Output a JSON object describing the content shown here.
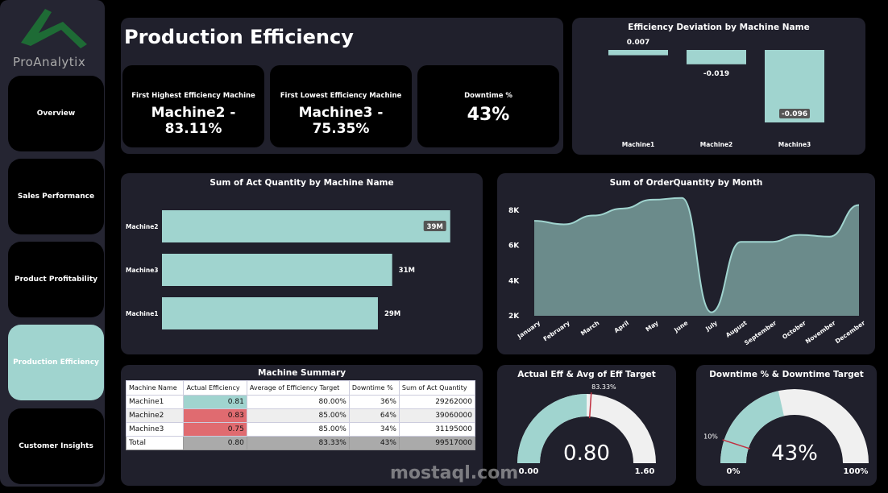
{
  "brand": {
    "name": "ProAnalytix",
    "logo_color": "#1e6b35"
  },
  "nav": [
    {
      "label": "Overview"
    },
    {
      "label": "Sales Performance"
    },
    {
      "label": "Product Profitability"
    },
    {
      "label": "Production Efficiency",
      "active": true
    },
    {
      "label": "Customer Insights"
    }
  ],
  "header": {
    "title": "Production Efficiency"
  },
  "kpis": [
    {
      "label": "First Highest Efficiency Machine",
      "value": "Machine2 - 83.11%"
    },
    {
      "label": "First Lowest Efficiency Machine",
      "value": "Machine3 - 75.35%"
    },
    {
      "label": "Downtime %",
      "value": "43%"
    }
  ],
  "colors": {
    "accent": "#a0d4cf",
    "area": "#6b8b8b",
    "red": "#e06b70",
    "panel": "#20202c"
  },
  "chart_data": [
    {
      "type": "bar",
      "title": "Efficiency Deviation by Machine Name",
      "categories": [
        "Machine1",
        "Machine2",
        "Machine3"
      ],
      "values": [
        0.007,
        -0.019,
        -0.096
      ],
      "labels": [
        "0.007",
        "-0.019",
        "-0.096"
      ]
    },
    {
      "type": "bar",
      "orientation": "horizontal",
      "title": "Sum of Act Quantity by Machine Name",
      "categories": [
        "Machine2",
        "Machine3",
        "Machine1"
      ],
      "values": [
        39060000,
        31195000,
        29262000
      ],
      "labels": [
        "39M",
        "31M",
        "29M"
      ],
      "xlim": [
        0,
        40000000
      ]
    },
    {
      "type": "area",
      "title": "Sum of OrderQuantity by Month",
      "categories": [
        "January",
        "February",
        "March",
        "April",
        "May",
        "June",
        "July",
        "August",
        "September",
        "October",
        "November",
        "December"
      ],
      "values": [
        7400,
        7200,
        7700,
        8100,
        8600,
        8700,
        2200,
        6200,
        6200,
        6600,
        6500,
        8300
      ],
      "yticks": [
        "2K",
        "4K",
        "6K",
        "8K"
      ],
      "ylim": [
        2000,
        9000
      ]
    },
    {
      "type": "gauge",
      "title": "Actual Eff & Avg of Eff Target",
      "value": 0.8,
      "value_label": "0.80",
      "min": 0,
      "max": 1.6,
      "min_label": "0.00",
      "max_label": "1.60",
      "target": 0.8333,
      "target_label": "83.33%"
    },
    {
      "type": "gauge",
      "title": "Downtime % & Downtime Target",
      "value": 43,
      "value_label": "43%",
      "min": 0,
      "max": 100,
      "min_label": "0%",
      "max_label": "100%",
      "target": 10,
      "target_label": "10%"
    }
  ],
  "table": {
    "title": "Machine Summary",
    "headers": [
      "Machine Name",
      "Actual Efficiency",
      "Average of Efficiency Target",
      "Downtime %",
      "Sum of Act Quantity"
    ],
    "rows": [
      [
        "Machine1",
        "0.81",
        "80.00%",
        "36%",
        "29262000"
      ],
      [
        "Machine2",
        "0.83",
        "85.00%",
        "64%",
        "39060000"
      ],
      [
        "Machine3",
        "0.75",
        "85.00%",
        "34%",
        "31195000"
      ]
    ],
    "total": [
      "Total",
      "0.80",
      "83.33%",
      "43%",
      "99517000"
    ]
  },
  "watermark": {
    "text": "mostaql.com"
  }
}
